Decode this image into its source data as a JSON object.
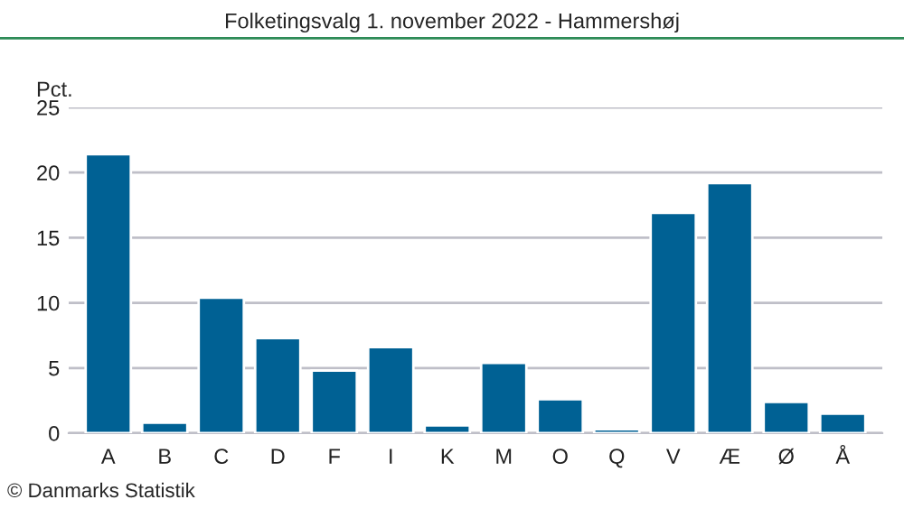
{
  "chart_data": {
    "type": "bar",
    "title": "Folketingsvalg 1. november 2022 - Hammershøj",
    "ylabel": "Pct.",
    "categories": [
      "A",
      "B",
      "C",
      "D",
      "F",
      "I",
      "K",
      "M",
      "O",
      "Q",
      "V",
      "Æ",
      "Ø",
      "Å"
    ],
    "values": [
      21.4,
      0.8,
      10.4,
      7.3,
      4.8,
      6.6,
      0.6,
      5.4,
      2.6,
      0.3,
      16.9,
      19.2,
      2.4,
      1.5
    ],
    "color": "#006194",
    "ylim": [
      0,
      25
    ],
    "yticks": [
      0,
      5,
      10,
      15,
      20,
      25
    ],
    "grid": "y",
    "annotations": [
      "© Danmarks Statistik"
    ]
  }
}
